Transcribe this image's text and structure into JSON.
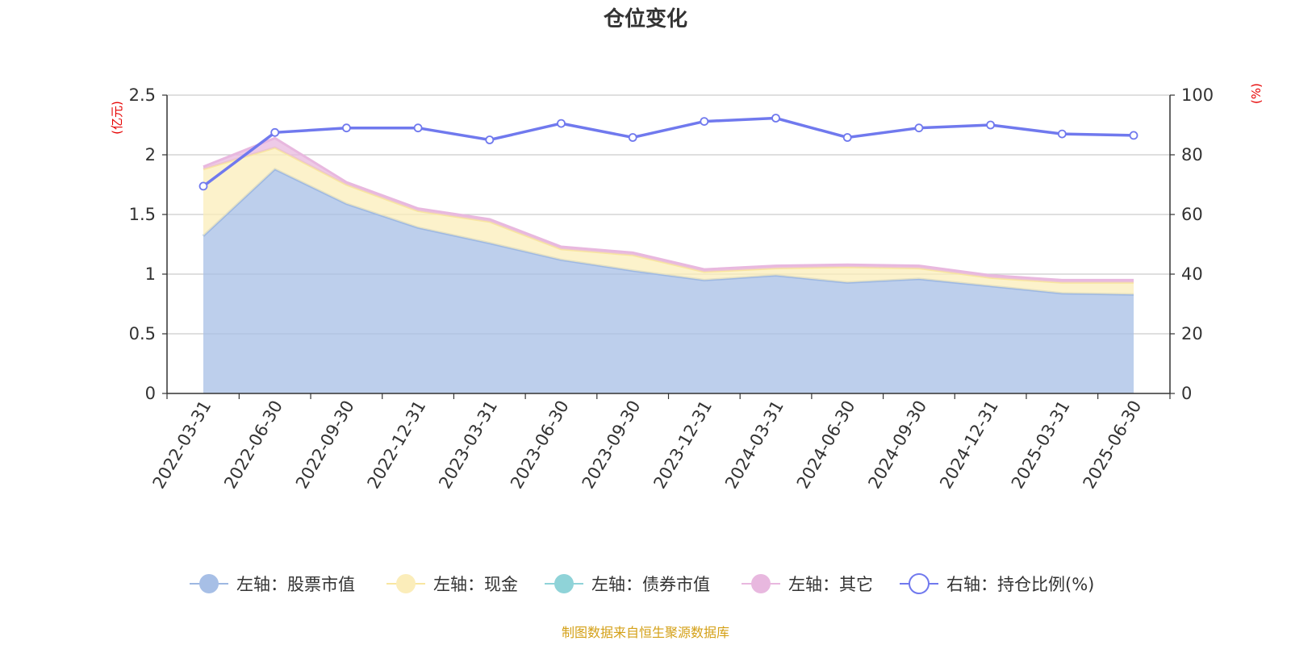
{
  "chart_data": {
    "type": "area",
    "title": "仓位变化",
    "left_unit": "(亿元)",
    "right_unit": "(%)",
    "source": "制图数据来自恒生聚源数据库",
    "categories": [
      "2022-03-31",
      "2022-06-30",
      "2022-09-30",
      "2022-12-31",
      "2023-03-31",
      "2023-06-30",
      "2023-09-30",
      "2023-12-31",
      "2024-03-31",
      "2024-06-30",
      "2024-09-30",
      "2024-12-31",
      "2025-03-31",
      "2025-06-30"
    ],
    "left_axis": {
      "min": 0,
      "max": 2.5,
      "ticks": [
        "0",
        "0.5",
        "1",
        "1.5",
        "2",
        "2.5"
      ]
    },
    "right_axis": {
      "min": 0,
      "max": 100,
      "ticks": [
        "0",
        "20",
        "40",
        "60",
        "80",
        "100"
      ]
    },
    "grid": true,
    "legend_position": "bottom",
    "series": [
      {
        "name": "左轴：股票市值",
        "axis": "left",
        "kind": "stacked-area",
        "color": "#a7bfe6",
        "line_color": "#9db8e2",
        "values": [
          1.32,
          1.88,
          1.59,
          1.39,
          1.26,
          1.12,
          1.03,
          0.95,
          0.99,
          0.93,
          0.96,
          0.9,
          0.84,
          0.83
        ]
      },
      {
        "name": "左轴：现金",
        "axis": "left",
        "kind": "stacked-area",
        "color": "#fbedba",
        "line_color": "#f8e6a0",
        "values": [
          0.56,
          0.18,
          0.16,
          0.14,
          0.18,
          0.09,
          0.13,
          0.07,
          0.06,
          0.13,
          0.09,
          0.07,
          0.09,
          0.1
        ]
      },
      {
        "name": "左轴：债券市值",
        "axis": "left",
        "kind": "stacked-area",
        "color": "#8fd3d8",
        "line_color": "#8fd3d8",
        "values": [
          0,
          0,
          0,
          0,
          0,
          0,
          0,
          0,
          0,
          0,
          0,
          0,
          0,
          0
        ]
      },
      {
        "name": "左轴：其它",
        "axis": "left",
        "kind": "stacked-area",
        "color": "#e8b8df",
        "line_color": "#e8b8df",
        "values": [
          0.02,
          0.08,
          0.02,
          0.02,
          0.02,
          0.02,
          0.02,
          0.02,
          0.02,
          0.02,
          0.02,
          0.02,
          0.02,
          0.02
        ]
      },
      {
        "name": "右轴：持仓比例(%)",
        "axis": "right",
        "kind": "line",
        "color": "#7079ee",
        "line_color": "#7079ee",
        "values": [
          69.5,
          87.5,
          89.0,
          89.0,
          85.0,
          90.5,
          85.8,
          91.2,
          92.3,
          85.8,
          89.0,
          90.0,
          87.0,
          86.5
        ]
      }
    ]
  }
}
